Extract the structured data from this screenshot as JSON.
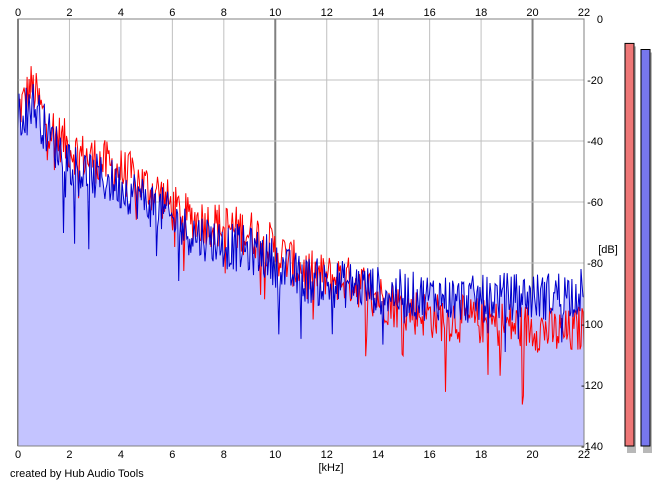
{
  "credit": "created by Hub Audio Tools",
  "chart_data": {
    "type": "area",
    "title": "",
    "xlabel": "[kHz]",
    "ylabel": "[dB]",
    "xlim": [
      0,
      22
    ],
    "ylim": [
      -140,
      0
    ],
    "x_ticks": [
      "0",
      "2",
      "4",
      "6",
      "8",
      "10",
      "12",
      "14",
      "16",
      "18",
      "20",
      "22"
    ],
    "y_ticks": [
      "0",
      "-20",
      "-40",
      "-60",
      "-80",
      "-100",
      "-120",
      "-140"
    ],
    "grid": true,
    "legend": "none",
    "series": [
      {
        "color": "#ff0000",
        "x": [
          0,
          0.25,
          0.5,
          0.75,
          1,
          1.5,
          2,
          2.5,
          3,
          3.5,
          4,
          4.5,
          5,
          5.5,
          6,
          6.5,
          7,
          7.5,
          8,
          8.5,
          9,
          9.5,
          10,
          10.5,
          11,
          11.5,
          12,
          12.5,
          13,
          13.5,
          14,
          14.5,
          15,
          15.5,
          16,
          16.5,
          17,
          17.5,
          18,
          18.5,
          19,
          19.5,
          20,
          20.5,
          21,
          21.5,
          22
        ],
        "y": [
          -30,
          -27,
          -22,
          -26,
          -32,
          -38,
          -42,
          -45,
          -46,
          -48,
          -50,
          -52,
          -55,
          -57,
          -62,
          -65,
          -66,
          -67,
          -68,
          -69,
          -70,
          -72,
          -76,
          -79,
          -82,
          -84,
          -85,
          -85,
          -86,
          -88,
          -91,
          -93,
          -95,
          -96,
          -97,
          -98,
          -98,
          -99,
          -99,
          -100,
          -100,
          -101,
          -101,
          -102,
          -103,
          -103,
          -101
        ]
      },
      {
        "color": "#0000cc",
        "x": [
          0,
          0.25,
          0.5,
          0.75,
          1,
          1.5,
          2,
          2.5,
          3,
          3.5,
          4,
          4.5,
          5,
          5.5,
          6,
          6.5,
          7,
          7.5,
          8,
          8.5,
          9,
          9.5,
          10,
          10.5,
          11,
          11.5,
          12,
          12.5,
          13,
          13.5,
          14,
          14.5,
          15,
          15.5,
          16,
          16.5,
          17,
          17.5,
          18,
          18.5,
          19,
          19.5,
          20,
          20.5,
          21,
          21.5,
          22
        ],
        "y": [
          -32,
          -30,
          -27,
          -30,
          -35,
          -42,
          -46,
          -50,
          -52,
          -53,
          -55,
          -57,
          -60,
          -62,
          -66,
          -69,
          -71,
          -72,
          -74,
          -75,
          -76,
          -77,
          -80,
          -83,
          -85,
          -86,
          -87,
          -87,
          -87,
          -88,
          -89,
          -90,
          -90,
          -91,
          -91,
          -91,
          -92,
          -92,
          -92,
          -91,
          -91,
          -91,
          -91,
          -91,
          -90,
          -90,
          -89
        ]
      }
    ],
    "level_meters": [
      {
        "channel": "left",
        "color": "#ee7777",
        "level_db": -8
      },
      {
        "channel": "right",
        "color": "#7777ee",
        "level_db": -10
      }
    ],
    "colors": {
      "fill": "#c4c4ff",
      "grid_minor": "#c0c0c0",
      "grid_major": "#808080",
      "meter_shadow": "#b8b8b8"
    }
  }
}
